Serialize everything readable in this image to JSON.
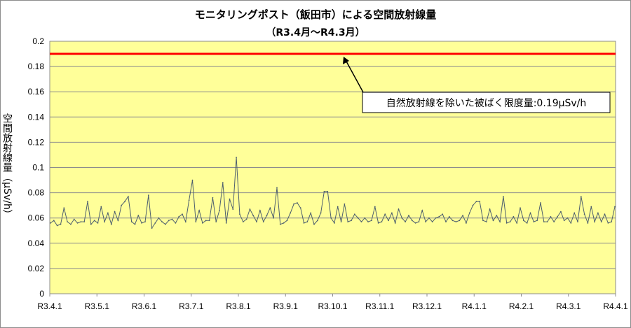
{
  "chart_data": {
    "type": "line",
    "title": "モニタリングポスト（飯田市）による空間放射線量",
    "subtitle": "（R3.4月～R4.3月）",
    "ylabel": "空間放射線量（μSv/h）",
    "ylim": [
      0,
      0.2
    ],
    "yticks": [
      "0",
      "0.02",
      "0.04",
      "0.06",
      "0.08",
      "0.1",
      "0.12",
      "0.14",
      "0.16",
      "0.18",
      "0.2"
    ],
    "xticks": [
      "R3.4.1",
      "R3.5.1",
      "R3.6.1",
      "R3.7.1",
      "R3.8.1",
      "R3.9.1",
      "R3.10.1",
      "R3.11.1",
      "R3.12.1",
      "R4.1.1",
      "R4.2.1",
      "R4.3.1",
      "R4.4.1"
    ],
    "grid": true,
    "background_color": "#ffff99",
    "series": [
      {
        "color": "#4d5f6e",
        "values": [
          0.056,
          0.058,
          0.054,
          0.055,
          0.068,
          0.057,
          0.055,
          0.059,
          0.056,
          0.057,
          0.057,
          0.073,
          0.055,
          0.058,
          0.056,
          0.069,
          0.057,
          0.064,
          0.055,
          0.065,
          0.058,
          0.07,
          0.073,
          0.077,
          0.057,
          0.055,
          0.062,
          0.056,
          0.057,
          0.078,
          0.052,
          0.056,
          0.06,
          0.057,
          0.055,
          0.058,
          0.059,
          0.056,
          0.061,
          0.063,
          0.057,
          0.074,
          0.09,
          0.057,
          0.066,
          0.056,
          0.058,
          0.058,
          0.076,
          0.057,
          0.066,
          0.088,
          0.056,
          0.075,
          0.067,
          0.108,
          0.063,
          0.057,
          0.059,
          0.067,
          0.062,
          0.057,
          0.066,
          0.057,
          0.062,
          0.068,
          0.06,
          0.084,
          0.055,
          0.056,
          0.058,
          0.064,
          0.071,
          0.072,
          0.068,
          0.056,
          0.057,
          0.064,
          0.055,
          0.058,
          0.064,
          0.081,
          0.081,
          0.06,
          0.056,
          0.069,
          0.057,
          0.071,
          0.057,
          0.058,
          0.063,
          0.06,
          0.057,
          0.06,
          0.057,
          0.058,
          0.069,
          0.056,
          0.057,
          0.063,
          0.058,
          0.064,
          0.056,
          0.067,
          0.06,
          0.057,
          0.062,
          0.058,
          0.056,
          0.057,
          0.066,
          0.057,
          0.06,
          0.057,
          0.06,
          0.061,
          0.063,
          0.057,
          0.061,
          0.058,
          0.057,
          0.058,
          0.062,
          0.056,
          0.064,
          0.07,
          0.073,
          0.073,
          0.058,
          0.057,
          0.067,
          0.058,
          0.062,
          0.057,
          0.077,
          0.056,
          0.057,
          0.061,
          0.056,
          0.068,
          0.058,
          0.056,
          0.064,
          0.057,
          0.058,
          0.072,
          0.057,
          0.057,
          0.061,
          0.057,
          0.061,
          0.065,
          0.058,
          0.06,
          0.056,
          0.064,
          0.057,
          0.077,
          0.063,
          0.056,
          0.069,
          0.057,
          0.064,
          0.057,
          0.063,
          0.056,
          0.057,
          0.069
        ]
      }
    ],
    "reference_line": {
      "value": 0.19,
      "color": "#ff0000"
    },
    "annotation": "自然放射線を除いた被ばく限度量:0.19μSv/h"
  }
}
